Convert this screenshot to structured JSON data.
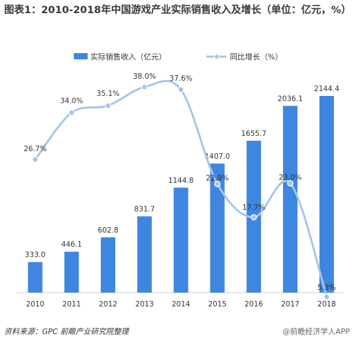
{
  "title": "图表1：2010-2018年中国游戏产业实际销售收入及增长（单位：亿元，%）",
  "source": "资料来源：GPC  前瞻产业研究院整理",
  "watermark": "@前瞻经济学人APP",
  "colors": {
    "bar": "#3f86e0",
    "line": "#a7c6e8",
    "marker": "#a7c6e8"
  },
  "chart_data": {
    "type": "bar",
    "categories": [
      "2010",
      "2011",
      "2012",
      "2013",
      "2014",
      "2015",
      "2016",
      "2017",
      "2018"
    ],
    "series": [
      {
        "name": "实际销售收入（亿元）",
        "type": "bar",
        "values": [
          333.0,
          446.1,
          602.8,
          831.7,
          1144.8,
          1407.0,
          1655.7,
          2036.1,
          2144.4
        ],
        "labels": [
          "333.0",
          "446.1",
          "602.8",
          "831.7",
          "1144.8",
          "1407.0",
          "1655.7",
          "2036.1",
          "2144.4"
        ]
      },
      {
        "name": "同比增长（%）",
        "type": "line",
        "values": [
          26.7,
          34.0,
          35.1,
          38.0,
          37.6,
          22.9,
          17.7,
          23.0,
          5.3
        ],
        "labels": [
          "26.7%",
          "34.0%",
          "35.1%",
          "38.0%",
          "37.6%",
          "22.9%",
          "17.7%",
          "23.0%",
          "5.3%"
        ]
      }
    ],
    "legend_position": "top-center",
    "grid": false
  }
}
